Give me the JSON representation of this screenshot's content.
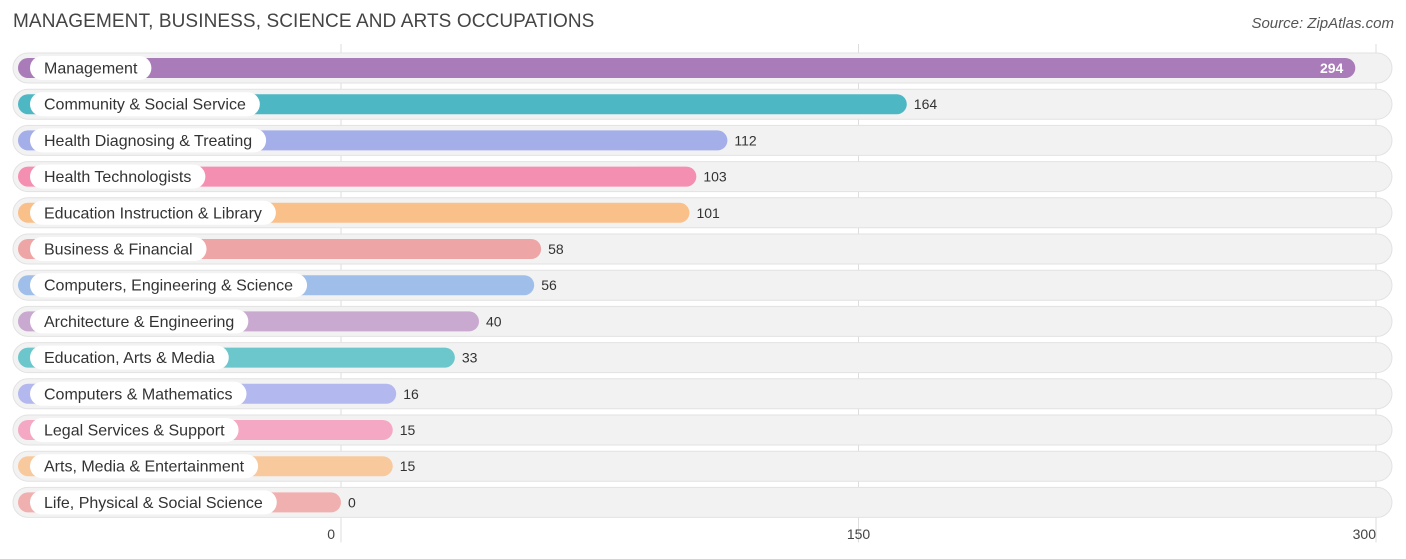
{
  "header": {
    "title": "MANAGEMENT, BUSINESS, SCIENCE AND ARTS OCCUPATIONS",
    "source": "Source: ZipAtlas.com"
  },
  "chart_data": {
    "type": "bar",
    "orientation": "horizontal",
    "categories": [
      "Management",
      "Community & Social Service",
      "Health Diagnosing & Treating",
      "Health Technologists",
      "Education Instruction & Library",
      "Business & Financial",
      "Computers, Engineering & Science",
      "Architecture & Engineering",
      "Education, Arts & Media",
      "Computers & Mathematics",
      "Legal Services & Support",
      "Arts, Media & Entertainment",
      "Life, Physical & Social Science"
    ],
    "values": [
      294,
      164,
      112,
      103,
      101,
      58,
      56,
      40,
      33,
      16,
      15,
      15,
      0
    ],
    "colors": [
      "#a97bb8",
      "#4db8c4",
      "#a4aee8",
      "#f48fb1",
      "#f9c08a",
      "#eea5a5",
      "#9fbfea",
      "#c9a9d0",
      "#6cc7cd",
      "#b3b8ee",
      "#f5a8c3",
      "#f9c99e",
      "#f1b0b0"
    ],
    "xlim": [
      0,
      300
    ],
    "ticks": [
      0,
      150,
      300
    ],
    "tick_labels": [
      "0",
      "150",
      "300"
    ],
    "grid": true
  }
}
